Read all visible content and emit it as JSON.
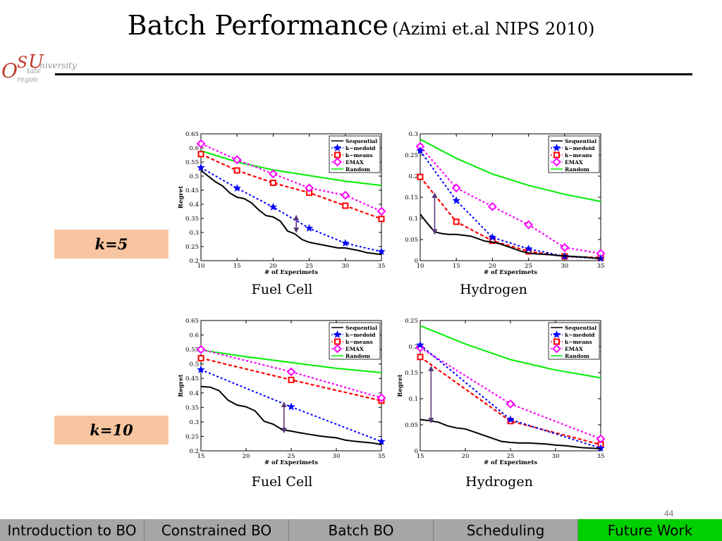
{
  "title": "Batch Performance",
  "subtitle": "(Azimi et.al NIPS 2010)",
  "logo": {
    "letters": {
      "o": "O",
      "s": "S",
      "tate": "tate",
      "u": "U",
      "niversity": "niversity",
      "regon": "regon"
    },
    "text": "Oregon State University"
  },
  "k_labels": [
    "k=5",
    "k=10"
  ],
  "page_number": "44",
  "nav": {
    "items": [
      "Introduction to BO",
      "Constrained BO",
      "Batch BO",
      "Scheduling",
      "Future Work"
    ],
    "active_index": 4
  },
  "colors": {
    "sequential": "#000000",
    "kmedoid": "#0000ff",
    "kmeans": "#ff0000",
    "emax": "#ff00ff",
    "random": "#00ee00",
    "arrow": "#5a3a7a",
    "k_box": "#f7c59f",
    "nav_bg": "#a6a6a6",
    "nav_active": "#00d000"
  },
  "chart_data": [
    {
      "type": "line",
      "caption": "Fuel Cell",
      "xlabel": "# of Experimets",
      "ylabel": "Regret",
      "xlim": [
        10,
        35
      ],
      "ylim": [
        0.2,
        0.65
      ],
      "xticks": [
        10,
        15,
        20,
        25,
        30,
        35
      ],
      "yticks": [
        0.2,
        0.25,
        0.3,
        0.35,
        0.4,
        0.45,
        0.5,
        0.55,
        0.6,
        0.65
      ],
      "ytick_labels": [
        "0.2",
        "0.25",
        "0.3",
        "0.35",
        "0.4",
        "0.45",
        "0.5",
        "0.55",
        "0.6",
        "0.65"
      ],
      "legend": [
        "Sequential",
        "k−medoid",
        "k−means",
        "EMAX",
        "Random"
      ],
      "legend_position": "top-right",
      "arrow": {
        "x": 23.2,
        "y1": 0.308,
        "y2": 0.353
      },
      "series": [
        {
          "name": "Sequential",
          "x": [
            10,
            11,
            12,
            13,
            14,
            15,
            16,
            17,
            18,
            19,
            20,
            21,
            22,
            23,
            24,
            25,
            26,
            27,
            28,
            29,
            30,
            31,
            32,
            33,
            34,
            35
          ],
          "y": [
            0.52,
            0.5,
            0.48,
            0.465,
            0.44,
            0.425,
            0.42,
            0.405,
            0.38,
            0.36,
            0.355,
            0.34,
            0.305,
            0.295,
            0.275,
            0.265,
            0.26,
            0.255,
            0.25,
            0.245,
            0.245,
            0.24,
            0.235,
            0.228,
            0.225,
            0.222
          ]
        },
        {
          "name": "k−medoid",
          "x": [
            10,
            15,
            20,
            25,
            30,
            35
          ],
          "y": [
            0.53,
            0.457,
            0.39,
            0.315,
            0.262,
            0.232
          ]
        },
        {
          "name": "k−means",
          "x": [
            10,
            15,
            20,
            25,
            30,
            35
          ],
          "y": [
            0.578,
            0.52,
            0.476,
            0.441,
            0.395,
            0.348
          ]
        },
        {
          "name": "EMAX",
          "x": [
            10,
            15,
            20,
            25,
            30,
            35
          ],
          "y": [
            0.615,
            0.558,
            0.508,
            0.458,
            0.432,
            0.375
          ]
        },
        {
          "name": "Random",
          "x": [
            10,
            15,
            20,
            25,
            30,
            35
          ],
          "y": [
            0.59,
            0.55,
            0.522,
            0.502,
            0.482,
            0.467
          ]
        }
      ]
    },
    {
      "type": "line",
      "caption": "Hydrogen",
      "xlabel": "# of Experimets",
      "ylabel": "",
      "xlim": [
        10,
        35
      ],
      "ylim": [
        0,
        0.3
      ],
      "xticks": [
        10,
        15,
        20,
        25,
        30,
        35
      ],
      "yticks": [
        0,
        0.05,
        0.1,
        0.15,
        0.2,
        0.25,
        0.3
      ],
      "ytick_labels": [
        "0",
        "0.05",
        "0.1",
        "0.15",
        "0.2",
        "0.25",
        "0.3"
      ],
      "legend": [
        "Sequential",
        "k−medoid",
        "k−means",
        "EMAX",
        "Random"
      ],
      "legend_position": "top-right",
      "arrow": {
        "x": 12,
        "y1": 0.068,
        "y2": 0.155
      },
      "series": [
        {
          "name": "Sequential",
          "x": [
            10,
            11,
            12,
            13,
            14,
            15,
            16,
            17,
            18,
            19,
            20,
            21,
            22,
            23,
            24,
            25,
            26,
            27,
            28,
            29,
            30,
            31,
            32,
            33,
            34,
            35
          ],
          "y": [
            0.11,
            0.088,
            0.068,
            0.064,
            0.062,
            0.062,
            0.06,
            0.058,
            0.052,
            0.046,
            0.044,
            0.04,
            0.034,
            0.028,
            0.022,
            0.018,
            0.016,
            0.015,
            0.014,
            0.012,
            0.011,
            0.01,
            0.009,
            0.008,
            0.006,
            0.005
          ]
        },
        {
          "name": "k−medoid",
          "x": [
            10,
            15,
            20,
            25,
            30,
            35
          ],
          "y": [
            0.26,
            0.142,
            0.055,
            0.028,
            0.01,
            0.005
          ]
        },
        {
          "name": "k−means",
          "x": [
            10,
            15,
            20,
            25,
            30,
            35
          ],
          "y": [
            0.198,
            0.092,
            0.047,
            0.022,
            0.01,
            0.007
          ]
        },
        {
          "name": "EMAX",
          "x": [
            10,
            15,
            20,
            25,
            30,
            35
          ],
          "y": [
            0.27,
            0.172,
            0.128,
            0.085,
            0.031,
            0.017
          ]
        },
        {
          "name": "Random",
          "x": [
            10,
            15,
            20,
            25,
            30,
            35
          ],
          "y": [
            0.287,
            0.242,
            0.205,
            0.178,
            0.157,
            0.14
          ]
        }
      ]
    },
    {
      "type": "line",
      "caption": "Fuel Cell",
      "xlabel": "# of Experimets",
      "ylabel": "Regret",
      "xlim": [
        15,
        35
      ],
      "ylim": [
        0.2,
        0.65
      ],
      "xticks": [
        15,
        20,
        25,
        30,
        35
      ],
      "yticks": [
        0.2,
        0.25,
        0.3,
        0.35,
        0.4,
        0.45,
        0.5,
        0.55,
        0.6,
        0.65
      ],
      "ytick_labels": [
        "0.2",
        "0.25",
        "0.3",
        "0.35",
        "0.4",
        "0.45",
        "0.5",
        "0.55",
        "0.6",
        "0.65"
      ],
      "legend": [
        "Sequential",
        "k−medoid",
        "k−means",
        "EMAX",
        "Random"
      ],
      "legend_position": "top-right",
      "arrow": {
        "x": 24.2,
        "y1": 0.27,
        "y2": 0.36
      },
      "series": [
        {
          "name": "Sequential",
          "x": [
            15,
            16,
            17,
            18,
            19,
            20,
            21,
            22,
            23,
            24,
            25,
            26,
            27,
            28,
            29,
            30,
            31,
            32,
            33,
            34,
            35
          ],
          "y": [
            0.422,
            0.42,
            0.408,
            0.375,
            0.358,
            0.352,
            0.338,
            0.302,
            0.292,
            0.273,
            0.268,
            0.262,
            0.257,
            0.252,
            0.248,
            0.245,
            0.237,
            0.233,
            0.23,
            0.227,
            0.222
          ]
        },
        {
          "name": "k−medoid",
          "x": [
            15,
            25,
            35
          ],
          "y": [
            0.48,
            0.352,
            0.232
          ]
        },
        {
          "name": "k−means",
          "x": [
            15,
            25,
            35
          ],
          "y": [
            0.52,
            0.445,
            0.373
          ]
        },
        {
          "name": "EMAX",
          "x": [
            15,
            25,
            35
          ],
          "y": [
            0.55,
            0.473,
            0.383
          ]
        },
        {
          "name": "Random",
          "x": [
            15,
            20,
            25,
            30,
            35
          ],
          "y": [
            0.548,
            0.525,
            0.505,
            0.485,
            0.47
          ]
        }
      ]
    },
    {
      "type": "line",
      "caption": "Hydrogen",
      "xlabel": "# of Experimets",
      "ylabel": "Regret",
      "xlim": [
        15,
        35
      ],
      "ylim": [
        0,
        0.25
      ],
      "xticks": [
        15,
        20,
        25,
        30,
        35
      ],
      "yticks": [
        0,
        0.05,
        0.1,
        0.15,
        0.2,
        0.25
      ],
      "ytick_labels": [
        "0",
        "0.05",
        "0.1",
        "0.15",
        "0.2",
        "0.25"
      ],
      "legend": [
        "Sequential",
        "k−medoid",
        "k−means",
        "EMAX",
        "Random"
      ],
      "legend_position": "top-right",
      "arrow": {
        "x": 16.2,
        "y1": 0.058,
        "y2": 0.158
      },
      "series": [
        {
          "name": "Sequential",
          "x": [
            15,
            16,
            17,
            18,
            19,
            20,
            21,
            22,
            23,
            24,
            25,
            26,
            27,
            28,
            29,
            30,
            31,
            32,
            33,
            34,
            35
          ],
          "y": [
            0.06,
            0.058,
            0.055,
            0.048,
            0.044,
            0.042,
            0.036,
            0.03,
            0.024,
            0.018,
            0.016,
            0.015,
            0.015,
            0.014,
            0.013,
            0.011,
            0.01,
            0.008,
            0.006,
            0.005,
            0.004
          ]
        },
        {
          "name": "k−medoid",
          "x": [
            15,
            25,
            35
          ],
          "y": [
            0.203,
            0.06,
            0.005
          ]
        },
        {
          "name": "k−means",
          "x": [
            15,
            25,
            35
          ],
          "y": [
            0.18,
            0.057,
            0.012
          ]
        },
        {
          "name": "EMAX",
          "x": [
            15,
            25,
            35
          ],
          "y": [
            0.198,
            0.09,
            0.023
          ]
        },
        {
          "name": "Random",
          "x": [
            15,
            20,
            25,
            30,
            35
          ],
          "y": [
            0.24,
            0.205,
            0.175,
            0.155,
            0.14
          ]
        }
      ]
    }
  ]
}
